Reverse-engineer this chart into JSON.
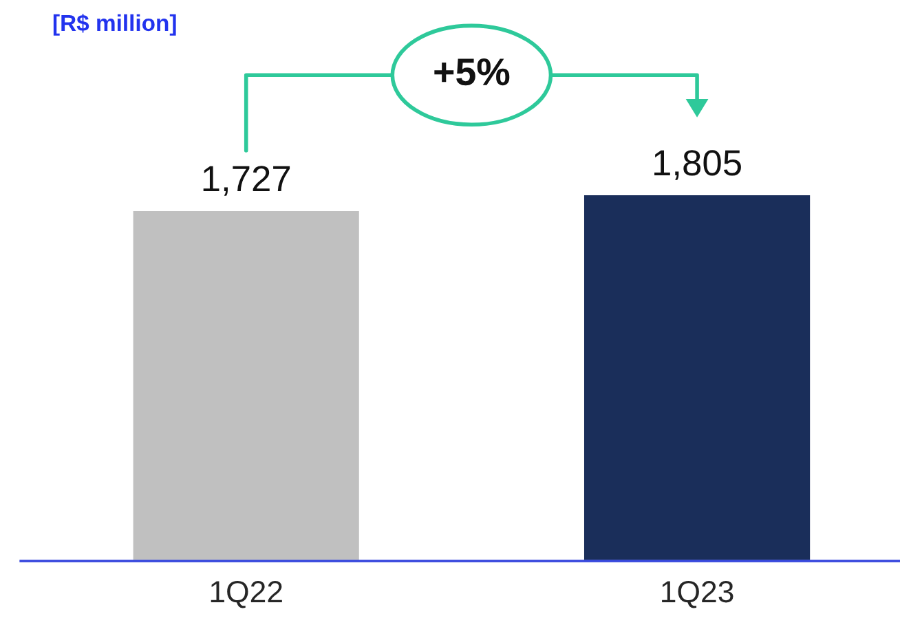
{
  "chart_data": {
    "type": "bar",
    "categories": [
      "1Q22",
      "1Q23"
    ],
    "values": [
      1727,
      1805
    ],
    "colors": [
      "#c0c0c0",
      "#1a2e5a"
    ],
    "value_labels": [
      "1,727",
      "1,805"
    ],
    "grid": false,
    "legend": false,
    "annotations": [
      "[R$ million]",
      "+5%"
    ]
  }
}
